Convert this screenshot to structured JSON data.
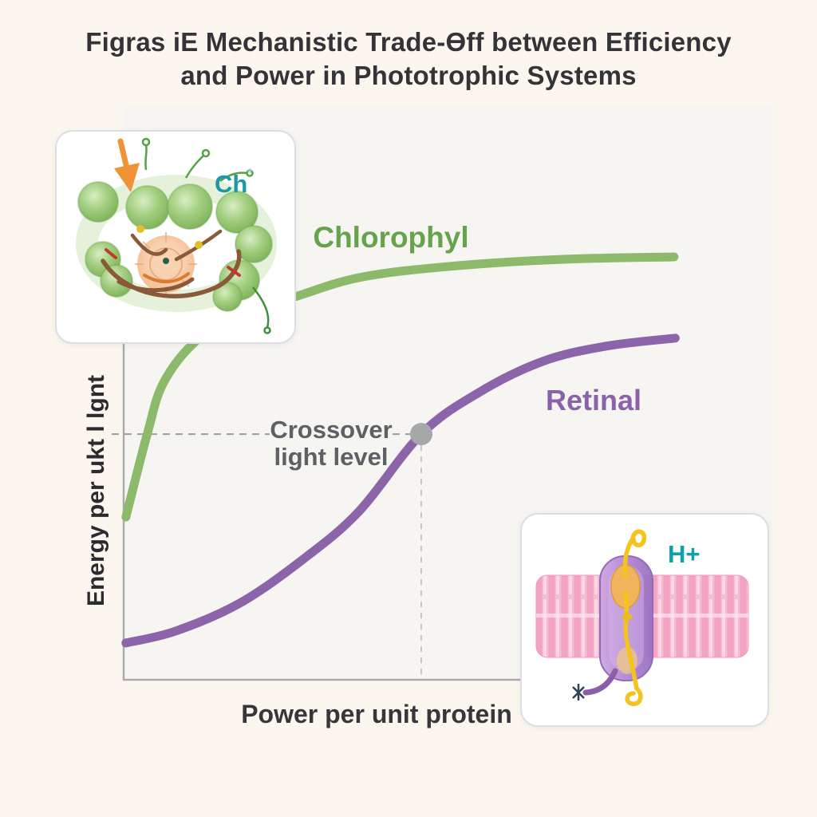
{
  "figure": {
    "title_line1": "Figras iE Mechanistic Trade-Ɵff between Efficiency",
    "title_line2": "and Power in Phototrophic Systems"
  },
  "chart": {
    "xlabel": "Power per unit protein",
    "ylabel": "Energy per ukt l lgnt",
    "chlorophyll_label": "Chlorophyl",
    "retinal_label": "Retinal",
    "annotation_line1": "Crossover",
    "annotation_line2": "light level"
  },
  "insets": {
    "chlorophyll": {
      "label": "Ch",
      "label_sup": "⁺"
    },
    "retinal": {
      "label": "H+"
    }
  },
  "colors": {
    "background": "#fbf7ef",
    "plot_background": "#f6f5f2",
    "axis": "#ababaf",
    "chlorophyll_curve": "#8cba6a",
    "retinal_curve": "#8b64a9",
    "chlorophyll_label": "#67a24d",
    "retinal_label": "#8a62aa",
    "annotation_text": "#5f5f64",
    "crossover_dot": "#a7a7a9",
    "dashed_guide_h": "#9ba0a5",
    "dashed_guide_v": "#c6c8c6",
    "teal_label": "#149ba9",
    "title_text": "#333338"
  },
  "chart_data": {
    "type": "line",
    "title": "Figras iE Mechanistic Trade-Ɵff between Efficiency and Power in Phototrophic Systems",
    "xlabel": "Power per unit protein",
    "ylabel": "Energy per ukt l lgnt",
    "xlim": [
      0,
      1
    ],
    "ylim": [
      0,
      1
    ],
    "ticks": "none (schematic axes, values normalized 0-1)",
    "grid": false,
    "legend": "inline curve labels",
    "series": [
      {
        "name": "Chlorophyl",
        "color": "#8cba6a",
        "shape": "saturating (high efficiency, low power)",
        "x": [
          0.004,
          0.043,
          0.072,
          0.13,
          0.21,
          0.306,
          0.426,
          0.585,
          0.788,
          0.997
        ],
        "y": [
          0.385,
          0.583,
          0.702,
          0.8,
          0.866,
          0.904,
          0.951,
          0.977,
          0.994,
          1.0
        ]
      },
      {
        "name": "Retinal",
        "color": "#8b64a9",
        "shape": "sigmoid (lower efficiency, higher power capacity)",
        "x": [
          0.004,
          0.094,
          0.21,
          0.325,
          0.426,
          0.539,
          0.643,
          0.759,
          0.874,
          0.999
        ],
        "y": [
          0.087,
          0.115,
          0.181,
          0.285,
          0.398,
          0.581,
          0.679,
          0.753,
          0.789,
          0.808
        ]
      }
    ],
    "annotations": [
      {
        "text": "Crossover light level",
        "x": 0.539,
        "y": 0.581,
        "marker": "gray dot on Retinal curve",
        "dashed_guides": "horizontal to y-axis, vertical to x-axis"
      }
    ]
  }
}
